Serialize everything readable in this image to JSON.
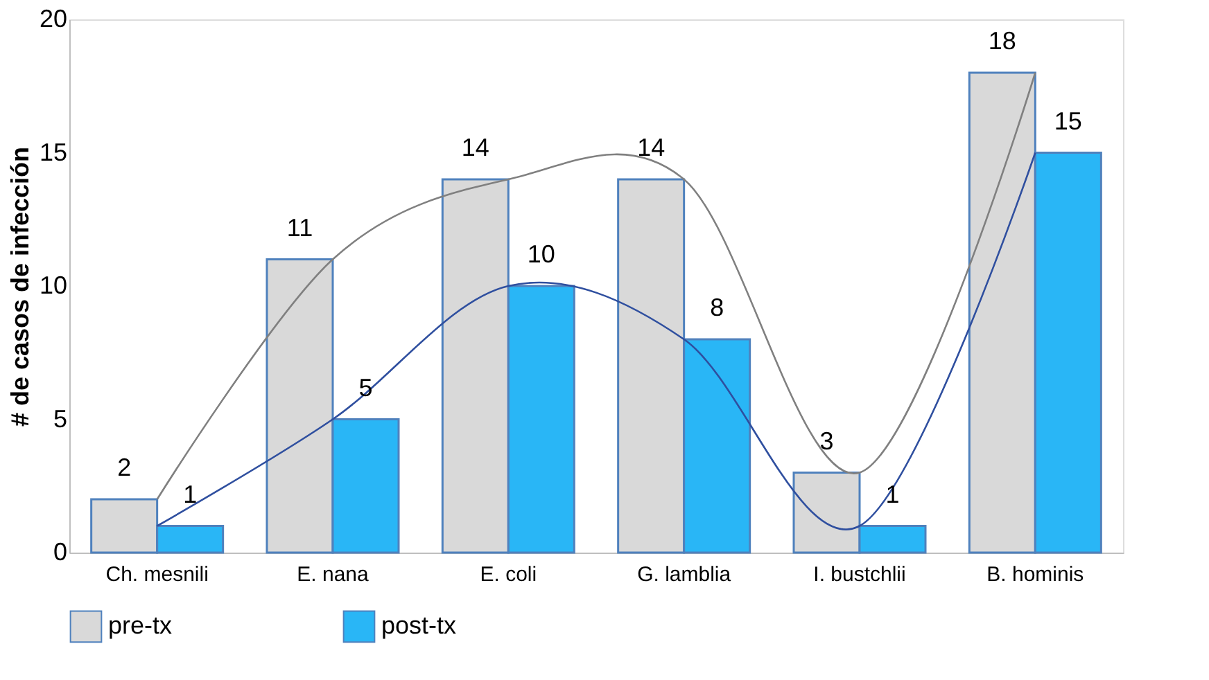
{
  "chart_data": {
    "type": "bar",
    "ylabel": "# de casos de infección",
    "categories": [
      "Ch. mesnili",
      "E. nana",
      "E. coli",
      "G. lamblia",
      "I. bustchlii",
      "B. hominis"
    ],
    "series": [
      {
        "name": "pre-tx",
        "color": "#d9d9d9",
        "values": [
          2,
          11,
          14,
          14,
          3,
          18
        ]
      },
      {
        "name": "post-tx",
        "color": "#29b6f6",
        "values": [
          1,
          5,
          10,
          8,
          1,
          15
        ]
      },
      {
        "type": "line",
        "color": "#808080",
        "values": [
          2,
          11,
          14,
          14,
          3,
          18
        ],
        "value_labels": [
          null,
          null,
          null,
          null,
          null,
          null
        ]
      },
      {
        "type": "line",
        "color": "#2f4f9f",
        "values": [
          1,
          5,
          10,
          8,
          1,
          15
        ],
        "value_labels": [
          null,
          null,
          null,
          null,
          null,
          null
        ]
      }
    ],
    "ylim": [
      0,
      20
    ],
    "yticks": [
      0,
      5,
      10,
      15,
      20
    ],
    "grid": false,
    "data_labels": true,
    "legend": "bottom"
  }
}
